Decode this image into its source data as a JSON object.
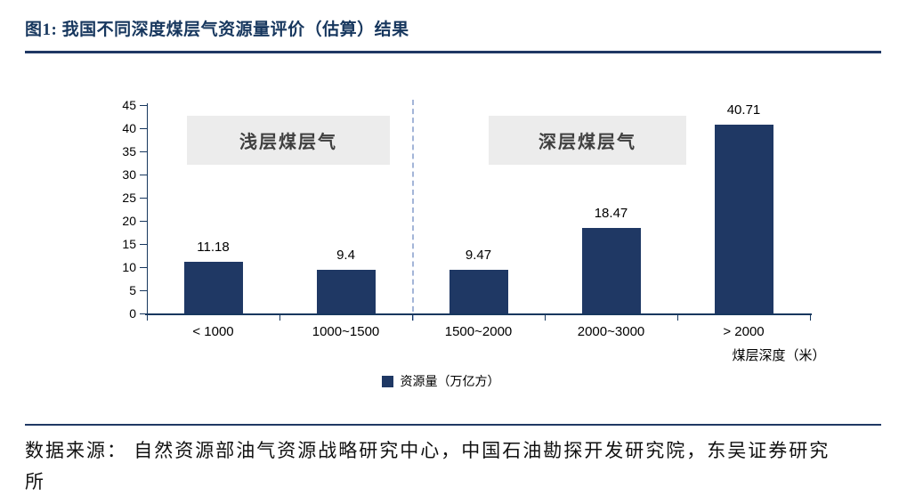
{
  "figure": {
    "title": "图1:  我国不同深度煤层气资源量评价（估算）结果"
  },
  "chart_data": {
    "type": "bar",
    "categories": [
      "< 1000",
      "1000~1500",
      "1500~2000",
      "2000~3000",
      "> 2000"
    ],
    "values": [
      11.18,
      9.4,
      9.47,
      18.47,
      40.71
    ],
    "value_labels": [
      "11.18",
      "9.4",
      "9.47",
      "18.47",
      "40.71"
    ],
    "title": "我国不同深度煤层气资源量评价（估算）结果",
    "xlabel": "煤层深度（米）",
    "ylabel": "",
    "ylim": [
      0,
      45
    ],
    "yticks": [
      0,
      5,
      10,
      15,
      20,
      25,
      30,
      35,
      40,
      45
    ],
    "grid": false,
    "legend_position": "bottom",
    "legend": [
      {
        "label": "资源量（万亿方）",
        "color": "#1F3864"
      }
    ],
    "bar_color": "#1F3864",
    "annotations": [
      {
        "text": "浅层煤层气",
        "zone": "categories 1-2"
      },
      {
        "text": "深层煤层气",
        "zone": "categories 3-5"
      }
    ]
  },
  "footer": {
    "source": "数据来源： 自然资源部油气资源战略研究中心，中国石油勘探开发研究院，东吴证券研究所"
  },
  "colors": {
    "accent": "#1F3864",
    "axis": "#17375E",
    "annotation_bg": "#ECECEC",
    "divider": "#A3B5D8"
  }
}
